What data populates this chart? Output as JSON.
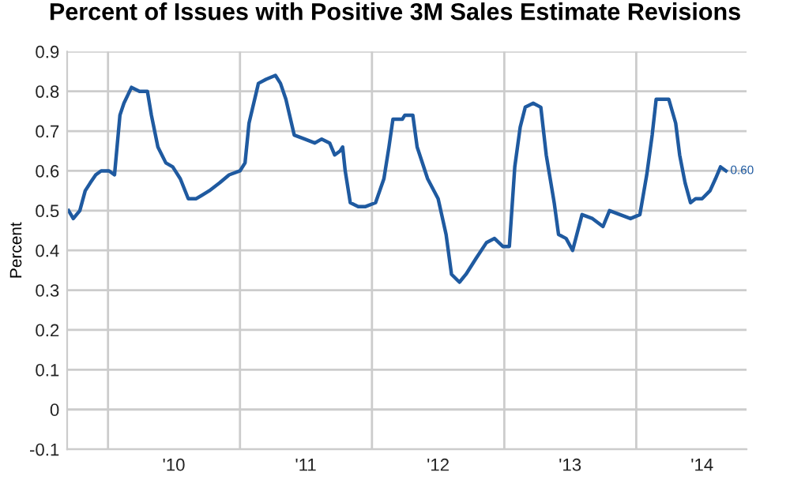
{
  "chart_data": {
    "type": "line",
    "title": "Percent of Issues with Positive 3M Sales Estimate Revisions",
    "ylabel": "Percent",
    "x": [
      "2009-09-14",
      "2009-09-27",
      "2009-10-15",
      "2009-10-30",
      "2009-11-13",
      "2009-11-28",
      "2009-12-13",
      "2010-01-04",
      "2010-01-19",
      "2010-02-03",
      "2010-02-14",
      "2010-03-07",
      "2010-03-29",
      "2010-04-20",
      "2010-05-01",
      "2010-05-19",
      "2010-06-10",
      "2010-06-29",
      "2010-07-20",
      "2010-08-11",
      "2010-09-02",
      "2010-10-08",
      "2010-11-06",
      "2010-12-02",
      "2011-01-01",
      "2011-01-15",
      "2011-01-26",
      "2011-02-21",
      "2011-03-14",
      "2011-04-09",
      "2011-04-23",
      "2011-05-08",
      "2011-05-31",
      "2011-06-29",
      "2011-07-27",
      "2011-08-15",
      "2011-09-06",
      "2011-09-20",
      "2011-10-05",
      "2011-10-12",
      "2011-10-19",
      "2011-11-02",
      "2011-11-24",
      "2011-12-13",
      "2012-01-11",
      "2012-02-03",
      "2012-02-17",
      "2012-02-28",
      "2012-03-25",
      "2012-04-01",
      "2012-04-23",
      "2012-05-05",
      "2012-06-03",
      "2012-07-02",
      "2012-07-24",
      "2012-08-08",
      "2012-08-30",
      "2012-09-17",
      "2012-10-15",
      "2012-11-13",
      "2012-12-05",
      "2012-12-28",
      "2013-01-15",
      "2013-01-30",
      "2013-02-14",
      "2013-02-28",
      "2013-03-22",
      "2013-04-12",
      "2013-04-27",
      "2013-05-19",
      "2013-05-31",
      "2013-06-21",
      "2013-07-09",
      "2013-08-04",
      "2013-09-02",
      "2013-10-01",
      "2013-10-19",
      "2013-11-17",
      "2013-12-16",
      "2014-01-11",
      "2014-01-30",
      "2014-02-14",
      "2014-02-25",
      "2014-04-01",
      "2014-04-20",
      "2014-05-01",
      "2014-05-16",
      "2014-05-31",
      "2014-06-14",
      "2014-07-02",
      "2014-07-24",
      "2014-08-08",
      "2014-08-22",
      "2014-09-06"
    ],
    "series": [
      {
        "color": "#1f5aa0",
        "values": [
          0.5,
          0.48,
          0.5,
          0.55,
          0.57,
          0.59,
          0.6,
          0.6,
          0.59,
          0.74,
          0.77,
          0.81,
          0.8,
          0.8,
          0.74,
          0.66,
          0.62,
          0.61,
          0.58,
          0.53,
          0.53,
          0.55,
          0.57,
          0.59,
          0.6,
          0.62,
          0.72,
          0.82,
          0.83,
          0.84,
          0.82,
          0.78,
          0.69,
          0.68,
          0.67,
          0.68,
          0.67,
          0.64,
          0.65,
          0.66,
          0.6,
          0.52,
          0.51,
          0.51,
          0.52,
          0.58,
          0.66,
          0.73,
          0.73,
          0.74,
          0.74,
          0.66,
          0.58,
          0.53,
          0.44,
          0.34,
          0.32,
          0.34,
          0.38,
          0.42,
          0.43,
          0.41,
          0.41,
          0.61,
          0.71,
          0.76,
          0.77,
          0.76,
          0.64,
          0.52,
          0.44,
          0.43,
          0.4,
          0.49,
          0.48,
          0.46,
          0.5,
          0.49,
          0.48,
          0.49,
          0.59,
          0.69,
          0.78,
          0.78,
          0.72,
          0.64,
          0.57,
          0.52,
          0.53,
          0.53,
          0.55,
          0.58,
          0.61,
          0.6
        ]
      }
    ],
    "annotations": [
      {
        "text": "0.60",
        "x": "2014-09-06",
        "y": 0.6
      }
    ],
    "xlim": [
      "2009-09-10",
      "2014-11-02"
    ],
    "ylim": [
      -0.1,
      0.9
    ],
    "xticks": [
      {
        "value": "2010-01-01",
        "label": null
      },
      {
        "value": "2010-07-02",
        "label": "'10"
      },
      {
        "value": "2011-01-01",
        "label": null
      },
      {
        "value": "2011-07-02",
        "label": "'11"
      },
      {
        "value": "2012-01-01",
        "label": null
      },
      {
        "value": "2012-07-02",
        "label": "'12"
      },
      {
        "value": "2013-01-01",
        "label": null
      },
      {
        "value": "2013-07-02",
        "label": "'13"
      },
      {
        "value": "2014-01-01",
        "label": null
      },
      {
        "value": "2014-07-02",
        "label": "'14"
      }
    ],
    "yticks": [
      -0.1,
      0,
      0.1,
      0.2,
      0.3,
      0.4,
      0.5,
      0.6,
      0.7,
      0.8,
      0.9
    ],
    "grid": true,
    "line_style": "solid",
    "marker": "none"
  }
}
